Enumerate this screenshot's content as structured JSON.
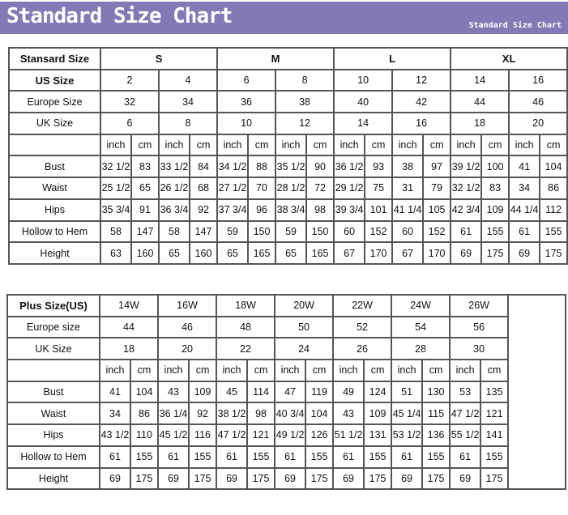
{
  "banner": {
    "title": "Standard Size Chart",
    "subtitle": "Standard Size Chart",
    "color": "#8479b5"
  },
  "standard": {
    "header_label": "Stansard Size",
    "groups": [
      "S",
      "M",
      "L",
      "XL"
    ],
    "size_rows": [
      {
        "label": "US Size",
        "bold": true,
        "values": [
          "2",
          "4",
          "6",
          "8",
          "10",
          "12",
          "14",
          "16"
        ]
      },
      {
        "label": "Europe Size",
        "bold": false,
        "values": [
          "32",
          "34",
          "36",
          "38",
          "40",
          "42",
          "44",
          "46"
        ]
      },
      {
        "label": "UK Size",
        "bold": false,
        "values": [
          "6",
          "8",
          "10",
          "12",
          "14",
          "16",
          "18",
          "20"
        ]
      }
    ],
    "units": [
      "inch",
      "cm"
    ],
    "measurements": [
      {
        "label": "Bust",
        "values": [
          "32 1/2",
          "83",
          "33 1/2",
          "84",
          "34 1/2",
          "88",
          "35 1/2",
          "90",
          "36 1/2",
          "93",
          "38",
          "97",
          "39 1/2",
          "100",
          "41",
          "104"
        ]
      },
      {
        "label": "Waist",
        "values": [
          "25 1/2",
          "65",
          "26 1/2",
          "68",
          "27 1/2",
          "70",
          "28 1/2",
          "72",
          "29 1/2",
          "75",
          "31",
          "79",
          "32 1/2",
          "83",
          "34",
          "86"
        ]
      },
      {
        "label": "Hips",
        "values": [
          "35 3/4",
          "91",
          "36 3/4",
          "92",
          "37 3/4",
          "96",
          "38 3/4",
          "98",
          "39 3/4",
          "101",
          "41 1/4",
          "105",
          "42 3/4",
          "109",
          "44 1/4",
          "112"
        ]
      },
      {
        "label": "Hollow to Hem",
        "values": [
          "58",
          "147",
          "58",
          "147",
          "59",
          "150",
          "59",
          "150",
          "60",
          "152",
          "60",
          "152",
          "61",
          "155",
          "61",
          "155"
        ]
      },
      {
        "label": "Height",
        "values": [
          "63",
          "160",
          "65",
          "160",
          "65",
          "165",
          "65",
          "165",
          "67",
          "170",
          "67",
          "170",
          "69",
          "175",
          "69",
          "175"
        ]
      }
    ]
  },
  "plus": {
    "size_rows": [
      {
        "label": "Plus Size(US)",
        "bold": true,
        "values": [
          "14W",
          "16W",
          "18W",
          "20W",
          "22W",
          "24W",
          "26W"
        ]
      },
      {
        "label": "Europe size",
        "bold": false,
        "values": [
          "44",
          "46",
          "48",
          "50",
          "52",
          "54",
          "56"
        ]
      },
      {
        "label": "UK Size",
        "bold": false,
        "values": [
          "18",
          "20",
          "22",
          "24",
          "26",
          "28",
          "30"
        ]
      }
    ],
    "units": [
      "inch",
      "cm"
    ],
    "measurements": [
      {
        "label": "Bust",
        "values": [
          "41",
          "104",
          "43",
          "109",
          "45",
          "114",
          "47",
          "119",
          "49",
          "124",
          "51",
          "130",
          "53",
          "135"
        ]
      },
      {
        "label": "Waist",
        "values": [
          "34",
          "86",
          "36 1/4",
          "92",
          "38 1/2",
          "98",
          "40 3/4",
          "104",
          "43",
          "109",
          "45 1/4",
          "115",
          "47 1/2",
          "121"
        ]
      },
      {
        "label": "Hips",
        "values": [
          "43 1/2",
          "110",
          "45 1/2",
          "116",
          "47 1/2",
          "121",
          "49 1/2",
          "126",
          "51 1/2",
          "131",
          "53 1/2",
          "136",
          "55 1/2",
          "141"
        ]
      },
      {
        "label": "Hollow to Hem",
        "values": [
          "61",
          "155",
          "61",
          "155",
          "61",
          "155",
          "61",
          "155",
          "61",
          "155",
          "61",
          "155",
          "61",
          "155"
        ]
      },
      {
        "label": "Height",
        "values": [
          "69",
          "175",
          "69",
          "175",
          "69",
          "175",
          "69",
          "175",
          "69",
          "175",
          "69",
          "175",
          "69",
          "175"
        ]
      }
    ]
  }
}
